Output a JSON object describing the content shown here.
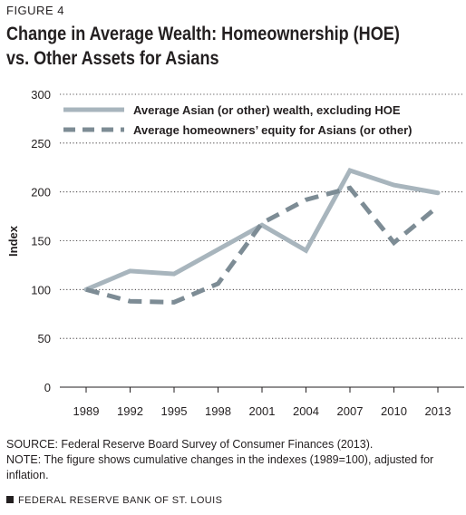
{
  "figure_label": "FIGURE 4",
  "title_line1": "Change in Average Wealth: Homeownership (HOE)",
  "title_line2": "vs. Other Assets for Asians",
  "source": "SOURCE: Federal Reserve Board Survey of Consumer Finances (2013).",
  "note": "NOTE: The figure shows cumulative changes in the indexes (1989=100), adjusted for inflation.",
  "footer": "FEDERAL RESERVE BANK OF ST. LOUIS",
  "chart_data": {
    "type": "line",
    "ylabel": "Index",
    "xlabel": "",
    "ylim": [
      0,
      300
    ],
    "yticks": [
      0,
      50,
      100,
      150,
      200,
      250,
      300
    ],
    "categories": [
      "1989",
      "1992",
      "1995",
      "1998",
      "2001",
      "2004",
      "2007",
      "2010",
      "2013"
    ],
    "grid": true,
    "legend_position": "top-left",
    "series": [
      {
        "name": "Average Asian (or other) wealth, excluding HOE",
        "values": [
          100,
          119,
          116,
          141,
          166,
          140,
          222,
          207,
          199
        ],
        "color": "#a8b5bd",
        "style": "solid"
      },
      {
        "name": "Average homeowners’ equity for Asians (or other)",
        "values": [
          100,
          88,
          87,
          106,
          168,
          192,
          204,
          148,
          185
        ],
        "color": "#7d8c95",
        "style": "dashed"
      }
    ]
  }
}
